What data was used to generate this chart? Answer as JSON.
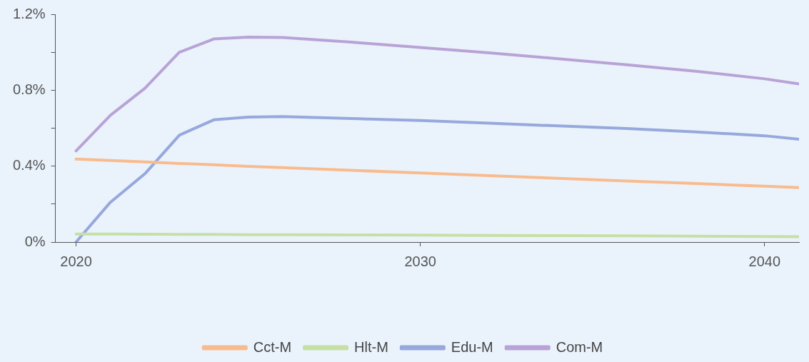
{
  "chart_data": {
    "type": "line",
    "x": [
      2020,
      2021,
      2022,
      2023,
      2024,
      2025,
      2026,
      2028,
      2030,
      2032,
      2034,
      2036,
      2038,
      2040,
      2041
    ],
    "series": [
      {
        "name": "Cct-M",
        "color": "#f9bb8e",
        "values": [
          0.437,
          0.43,
          0.422,
          0.414,
          0.407,
          0.399,
          0.392,
          0.378,
          0.364,
          0.35,
          0.336,
          0.322,
          0.308,
          0.294,
          0.287
        ]
      },
      {
        "name": "Hlt-M",
        "color": "#c5e0a5",
        "values": [
          0.042,
          0.042,
          0.041,
          0.04,
          0.04,
          0.039,
          0.039,
          0.038,
          0.037,
          0.035,
          0.034,
          0.033,
          0.031,
          0.029,
          0.028
        ]
      },
      {
        "name": "Edu-M",
        "color": "#97a8dc",
        "values": [
          0,
          0.21,
          0.36,
          0.563,
          0.644,
          0.658,
          0.661,
          0.651,
          0.64,
          0.626,
          0.612,
          0.598,
          0.58,
          0.56,
          0.542
        ]
      },
      {
        "name": "Com-M",
        "color": "#b9a3d6",
        "values": [
          0.48,
          0.668,
          0.81,
          1.0,
          1.07,
          1.08,
          1.078,
          1.053,
          1.025,
          0.997,
          0.966,
          0.934,
          0.9,
          0.86,
          0.833
        ]
      }
    ],
    "xlim": [
      2019.4,
      2041
    ],
    "xticks": [
      2020,
      2030,
      2040
    ],
    "ylim": [
      0,
      1.2
    ],
    "yticks": [
      {
        "value": 0,
        "label": "0%"
      },
      {
        "value": 0.2,
        "label": null
      },
      {
        "value": 0.4,
        "label": "0.4%"
      },
      {
        "value": 0.6,
        "label": null
      },
      {
        "value": 0.8,
        "label": "0.8%"
      },
      {
        "value": 1.0,
        "label": null
      },
      {
        "value": 1.2,
        "label": "1.2%"
      }
    ],
    "grid": false,
    "legend": "bottom",
    "marker": "none",
    "line_style": "solid"
  }
}
